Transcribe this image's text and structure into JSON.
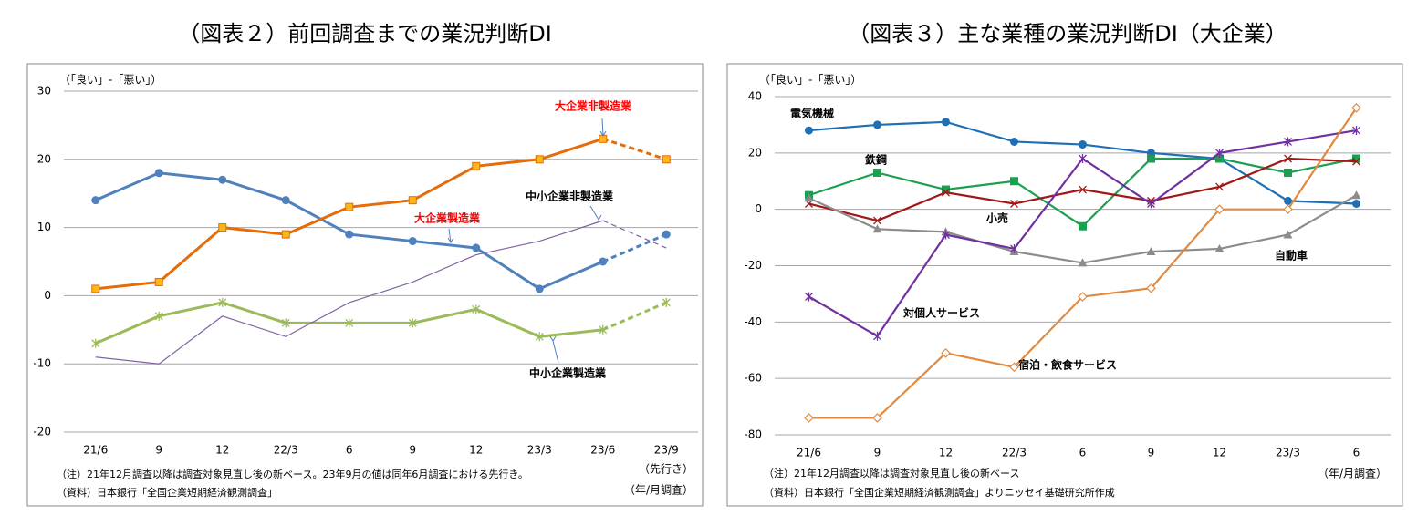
{
  "chart_data": [
    {
      "type": "line",
      "title": "（図表２）前回調査までの業況判断DI",
      "y_axis_label": "（「良い」-「悪い」）",
      "categories": [
        "21/6",
        "9",
        "12",
        "22/3",
        "6",
        "9",
        "12",
        "23/3",
        "23/6",
        "23/9"
      ],
      "series": [
        {
          "name": "大企業製造業",
          "color": "#4f81bd",
          "marker": "circle",
          "label_color": "#ff0000",
          "values": [
            14,
            18,
            17,
            14,
            9,
            8,
            7,
            1,
            5,
            9
          ]
        },
        {
          "name": "大企業非製造業",
          "color": "#e46c0a",
          "marker": "square",
          "label_color": "#ff0000",
          "values": [
            1,
            2,
            10,
            9,
            13,
            14,
            19,
            20,
            23,
            20
          ]
        },
        {
          "name": "中小企業製造業",
          "color": "#9bbb59",
          "marker": "asterisk",
          "label_color": "#000000",
          "values": [
            -7,
            -3,
            -1,
            -4,
            -4,
            -4,
            -2,
            -6,
            -5,
            -1
          ]
        },
        {
          "name": "中小企業非製造業",
          "color": "#8064a2",
          "marker": "none",
          "line_style": "thin",
          "label_color": "#000000",
          "values": [
            -9,
            -10,
            -3,
            -6,
            -1,
            2,
            6,
            8,
            11,
            7
          ]
        }
      ],
      "ylim": [
        -20,
        30
      ],
      "yticks": [
        -20,
        -10,
        0,
        10,
        20,
        30
      ],
      "grid": true,
      "dashed_last_segment": true,
      "x_last_note": "（先行き）",
      "x_axis_note": "（年/月調査）",
      "notes": [
        "（注）21年12月調査以降は調査対象見直し後の新ベース。23年9月の値は同年6月調査における先行き。",
        "（資料）日本銀行「全国企業短期経済観測調査」"
      ]
    },
    {
      "type": "line",
      "title": "（図表３）主な業種の業況判断DI（大企業）",
      "y_axis_label": "（「良い」-「悪い」）",
      "categories": [
        "21/6",
        "9",
        "12",
        "22/3",
        "6",
        "9",
        "12",
        "23/3",
        "6"
      ],
      "series": [
        {
          "name": "電気機械",
          "color": "#1f6fb4",
          "marker": "circle",
          "label_color": "#000000",
          "values": [
            28,
            30,
            31,
            24,
            23,
            20,
            18,
            3,
            2
          ]
        },
        {
          "name": "鉄鋼",
          "color": "#1aa050",
          "marker": "square",
          "label_color": "#000000",
          "values": [
            5,
            13,
            7,
            10,
            -6,
            18,
            18,
            13,
            18
          ]
        },
        {
          "name": "小売",
          "color": "#a01818",
          "marker": "x",
          "label_color": "#000000",
          "values": [
            2,
            -4,
            6,
            2,
            7,
            3,
            8,
            18,
            17
          ]
        },
        {
          "name": "自動車",
          "color": "#8c8c8c",
          "marker": "triangle",
          "label_color": "#000000",
          "values": [
            4,
            -7,
            -8,
            -15,
            -19,
            -15,
            -14,
            -9,
            5
          ]
        },
        {
          "name": "対個人サービス",
          "color": "#7030a0",
          "marker": "asterisk",
          "label_color": "#000000",
          "values": [
            -31,
            -45,
            -9,
            -14,
            18,
            2,
            20,
            24,
            28
          ]
        },
        {
          "name": "宿泊・飲食サービス",
          "color": "#e08a40",
          "marker": "diamond",
          "label_color": "#000000",
          "values": [
            -74,
            -74,
            -51,
            -56,
            -31,
            -28,
            0,
            0,
            36
          ]
        }
      ],
      "ylim": [
        -80,
        40
      ],
      "yticks": [
        -80,
        -60,
        -40,
        -20,
        0,
        20,
        40
      ],
      "grid": true,
      "dashed_last_segment": false,
      "x_axis_note": "（年/月調査）",
      "notes": [
        "（注）21年12月調査以降は調査対象見直し後の新ベース",
        "（資料）日本銀行「全国企業短期経済観測調査」よりニッセイ基礎研究所作成"
      ]
    }
  ]
}
